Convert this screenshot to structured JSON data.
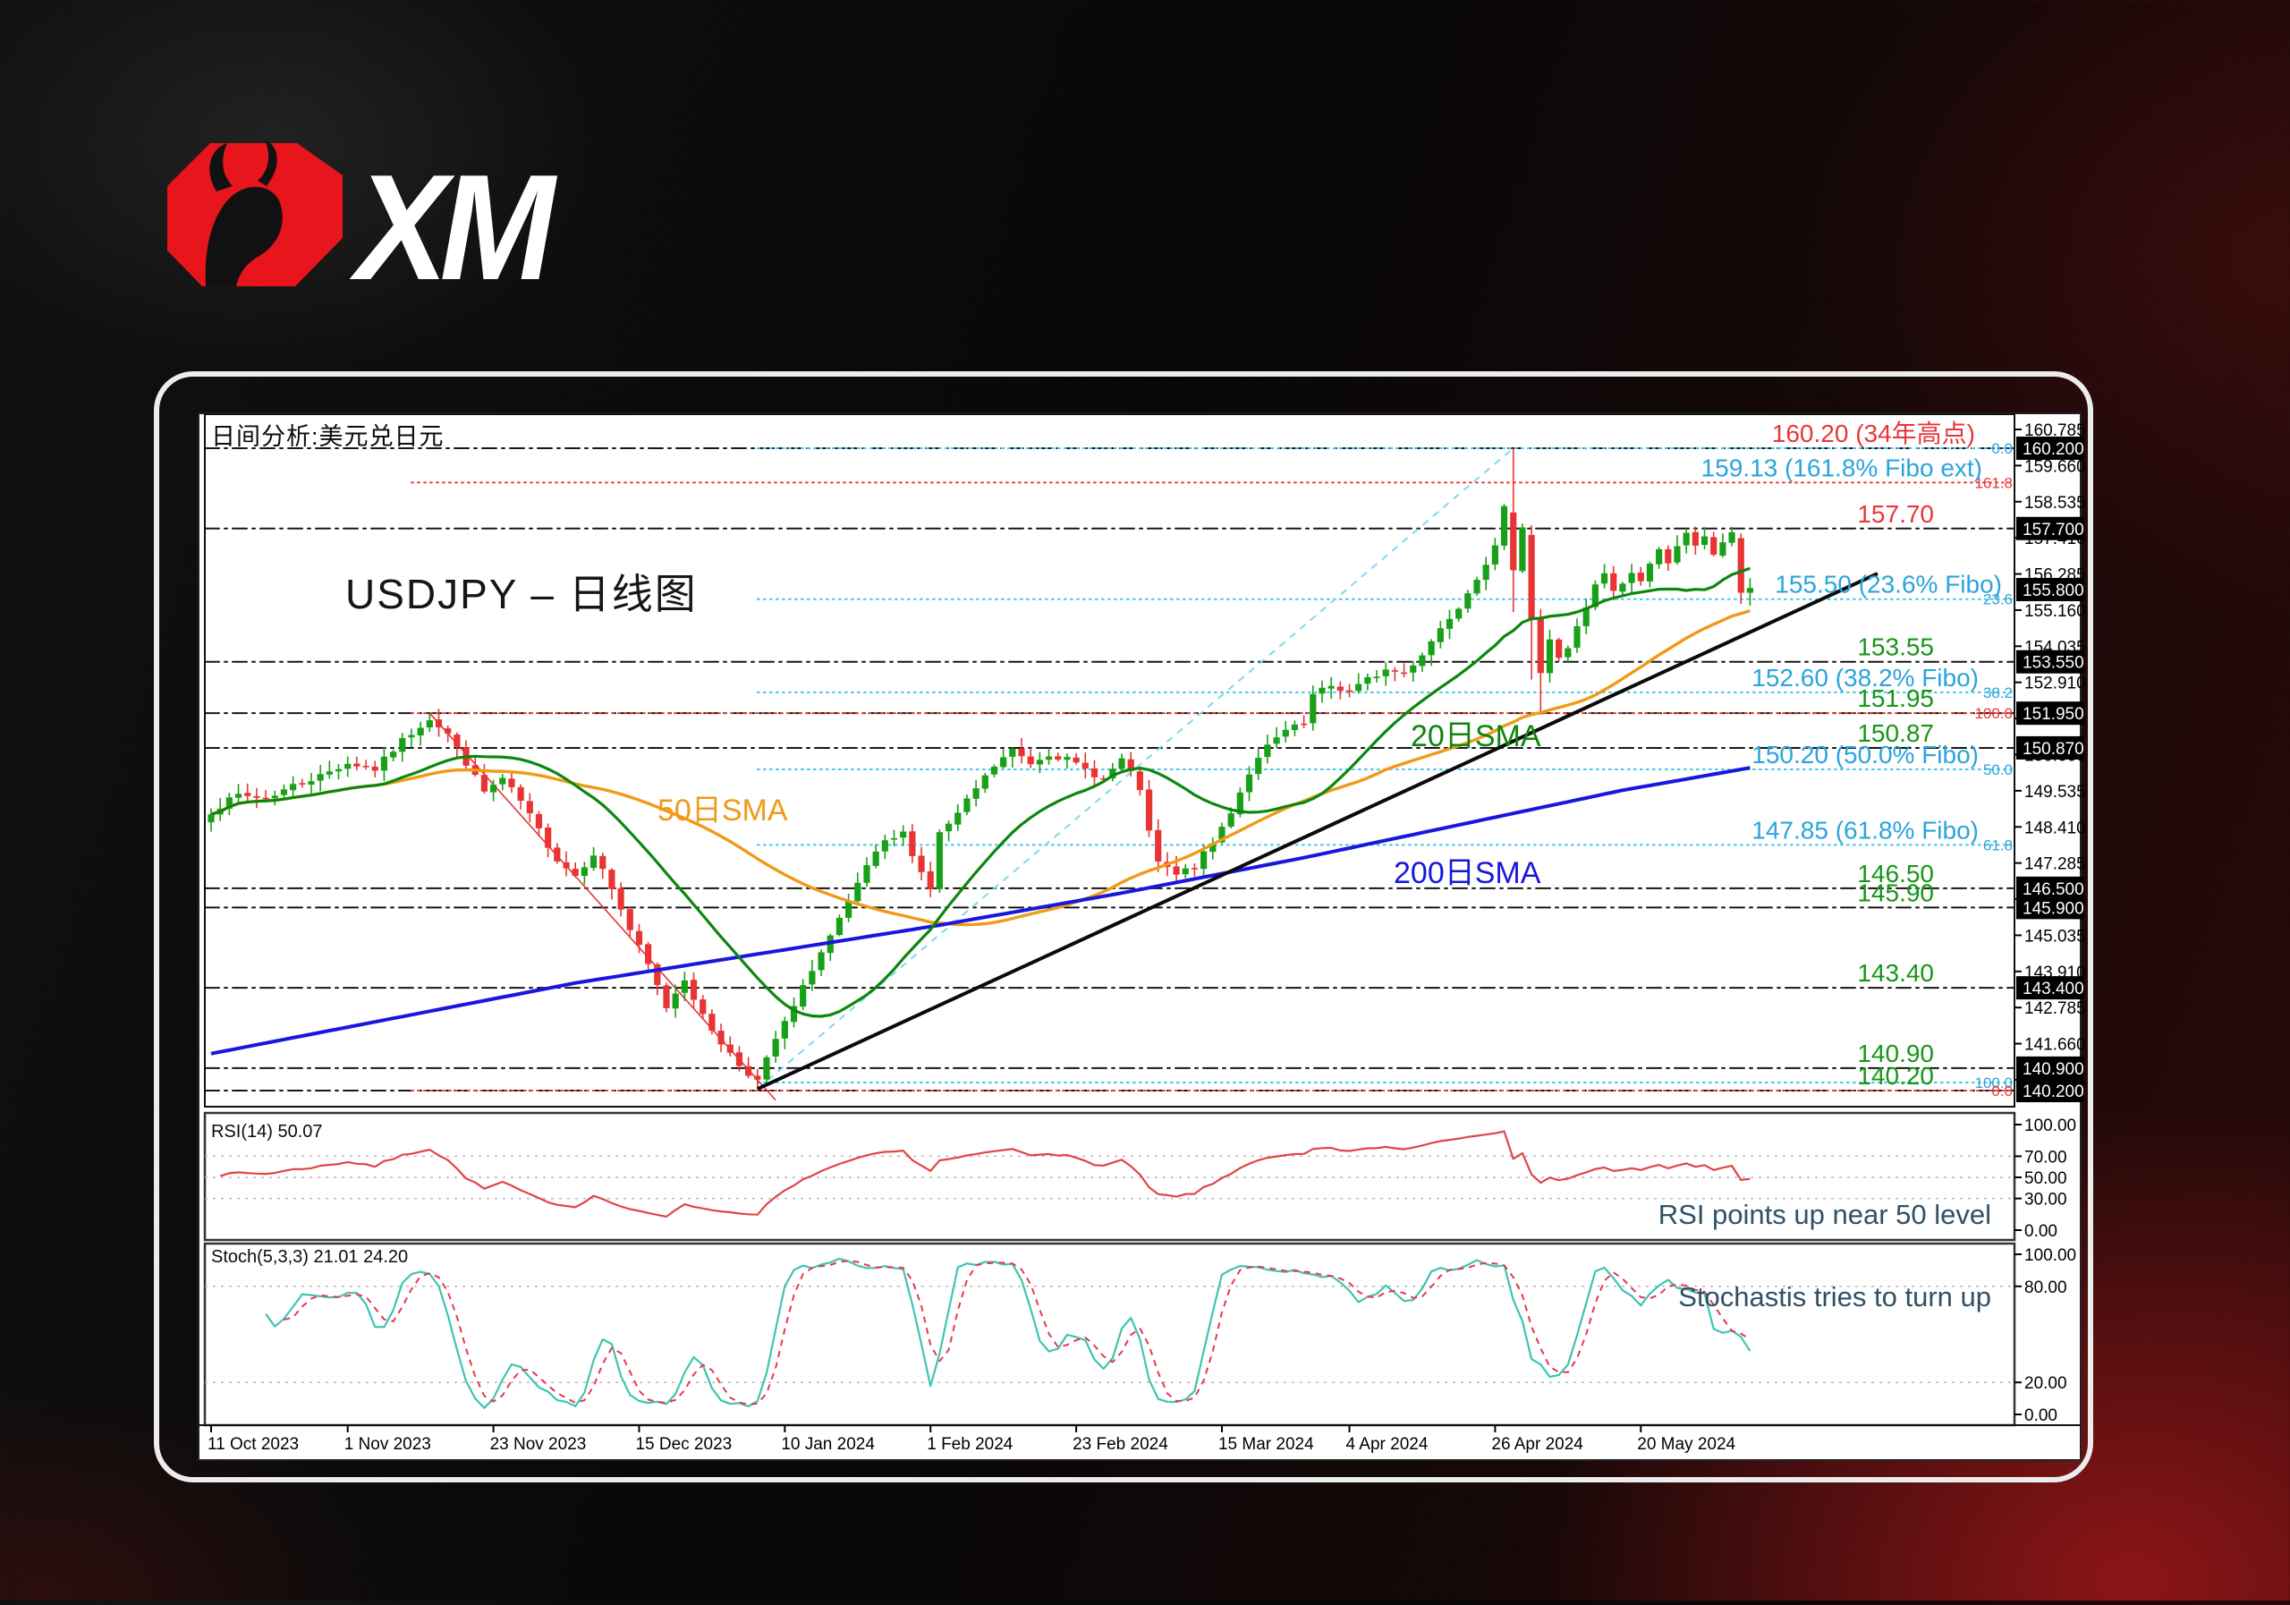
{
  "brand": {
    "logo_text": "XM",
    "badge_color": "#e8151c",
    "bull_color": "#111111"
  },
  "panel": {
    "title": "日间分析:美元兑日元",
    "watermark": "USDJPY – 日线图"
  },
  "indicators": {
    "rsi": {
      "label": "RSI(14) 50.07",
      "period": 14,
      "last_value": 50.07,
      "comment": "RSI points up near 50 level",
      "axis_labels": [
        {
          "v": 100,
          "text": "100.00"
        },
        {
          "v": 70,
          "text": "70.00"
        },
        {
          "v": 50,
          "text": "50.00"
        },
        {
          "v": 30,
          "text": "30.00"
        },
        {
          "v": 0,
          "text": "0.00"
        }
      ],
      "gridlines": [
        70,
        50,
        30
      ],
      "line_color": "#e04545"
    },
    "stoch": {
      "label": "Stoch(5,3,3) 21.01 24.20",
      "k_last": 21.01,
      "d_last": 24.2,
      "comment": "Stochastis tries to turn up",
      "axis_labels": [
        {
          "v": 100,
          "text": "100.00"
        },
        {
          "v": 80,
          "text": "80.00"
        },
        {
          "v": 20,
          "text": "20.00"
        },
        {
          "v": 0,
          "text": "0.00"
        }
      ],
      "gridlines": [
        80,
        20
      ],
      "k_color": "#3fc4b2",
      "d_color": "#e8374b"
    }
  },
  "chart_data": {
    "type": "candlestick",
    "symbol": "USDJPY",
    "timeframe": "daily",
    "title": "日间分析:美元兑日元",
    "current_price": 155.8,
    "bull_color": "#18a018",
    "bear_color": "#e93434",
    "x_axis": {
      "date_ticks": [
        {
          "day": 0,
          "label": "11 Oct 2023"
        },
        {
          "day": 15,
          "label": "1 Nov 2023"
        },
        {
          "day": 31,
          "label": "23 Nov 2023"
        },
        {
          "day": 47,
          "label": "15 Dec 2023"
        },
        {
          "day": 63,
          "label": "10 Jan 2024"
        },
        {
          "day": 79,
          "label": "1 Feb 2024"
        },
        {
          "day": 95,
          "label": "23 Feb 2024"
        },
        {
          "day": 111,
          "label": "15 Mar 2024"
        },
        {
          "day": 125,
          "label": "4 Apr 2024"
        },
        {
          "day": 141,
          "label": "26 Apr 2024"
        },
        {
          "day": 157,
          "label": "20 May 2024"
        }
      ]
    },
    "y_axis": {
      "tick_start": 140.535,
      "tick_step": 1.125,
      "tick_count": 19,
      "tick_labels": [
        "140.535",
        "141.660",
        "142.785",
        "143.910",
        "145.035",
        "146.160",
        "147.285",
        "148.410",
        "149.535",
        "150.660",
        "151.785",
        "152.910",
        "154.035",
        "155.160",
        "156.285",
        "157.410",
        "158.535",
        "159.660",
        "160.785"
      ],
      "marked_prices": [
        160.2,
        157.7,
        155.8,
        153.55,
        151.95,
        150.87,
        146.5,
        145.9,
        143.4,
        140.9,
        140.2
      ]
    },
    "levels": [
      {
        "price": 160.2,
        "label": "160.20 (34年高点)",
        "color": "red",
        "lines": [
          "sr",
          "fib"
        ],
        "label_right": 2208
      },
      {
        "price": 159.13,
        "label": "159.13 (161.8% Fibo ext)",
        "color": "cyan",
        "lines": [
          "ext"
        ],
        "label_right": 2216
      },
      {
        "price": 157.7,
        "label": "157.70",
        "color": "red",
        "lines": [
          "sr"
        ],
        "label_right": 2162
      },
      {
        "price": 155.5,
        "label": "155.50 (23.6% Fibo)",
        "color": "cyan",
        "lines": [
          "fib"
        ],
        "label_right": 2238
      },
      {
        "price": 153.55,
        "label": "153.55",
        "color": "green",
        "lines": [
          "sr"
        ],
        "label_right": 2162
      },
      {
        "price": 152.6,
        "label": "152.60 (38.2% Fibo)",
        "color": "cyan",
        "lines": [
          "fib"
        ],
        "label_right": 2212
      },
      {
        "price": 151.95,
        "label": "151.95",
        "color": "green",
        "lines": [
          "sr",
          "ext"
        ],
        "label_right": 2162
      },
      {
        "price": 150.87,
        "label": "150.87",
        "color": "green",
        "lines": [
          "sr"
        ],
        "label_right": 2162
      },
      {
        "price": 150.2,
        "label": "150.20 (50.0% Fibo)",
        "color": "cyan",
        "lines": [
          "fib"
        ],
        "label_right": 2212
      },
      {
        "price": 147.85,
        "label": "147.85 (61.8% Fibo)",
        "color": "cyan",
        "lines": [
          "fib"
        ],
        "label_right": 2212
      },
      {
        "price": 146.5,
        "label": "146.50",
        "color": "green",
        "lines": [
          "sr"
        ],
        "label_right": 2162
      },
      {
        "price": 145.9,
        "label": "145.90",
        "color": "green",
        "lines": [
          "sr"
        ],
        "label_right": 2162
      },
      {
        "price": 143.4,
        "label": "143.40",
        "color": "green",
        "lines": [
          "sr"
        ],
        "label_right": 2162
      },
      {
        "price": 140.9,
        "label": "140.90",
        "color": "green",
        "lines": [
          "sr"
        ],
        "label_right": 2162
      },
      {
        "price": 140.45,
        "label": "",
        "color": "cyan",
        "lines": [
          "fib"
        ],
        "label_right": 2162
      },
      {
        "price": 140.2,
        "label": "140.20",
        "color": "green",
        "lines": [
          "sr",
          "ext"
        ],
        "label_right": 2162
      }
    ],
    "fib_marks": [
      {
        "price": 160.2,
        "text": "0.0",
        "color": "cyan"
      },
      {
        "price": 159.13,
        "text": "161.8",
        "color": "red"
      },
      {
        "price": 155.5,
        "text": "23.6",
        "color": "cyan"
      },
      {
        "price": 152.6,
        "text": "38.2",
        "color": "cyan"
      },
      {
        "price": 151.95,
        "text": "100.0",
        "color": "red"
      },
      {
        "price": 150.2,
        "text": "50.0",
        "color": "cyan"
      },
      {
        "price": 147.85,
        "text": "61.8",
        "color": "cyan"
      },
      {
        "price": 140.45,
        "text": "100.0",
        "color": "cyan"
      },
      {
        "price": 140.2,
        "text": "0.0",
        "color": "red"
      }
    ],
    "trendlines": [
      {
        "name": "support-trendline",
        "from": [
          60,
          140.25
        ],
        "to": [
          183,
          156.3
        ],
        "color": "#0a0a0a",
        "width": 4,
        "dash": ""
      },
      {
        "name": "channel-projection",
        "from": [
          60,
          140.25
        ],
        "to": [
          143,
          160.2
        ],
        "color": "#7fd9ef",
        "width": 2,
        "dash": "8 7"
      },
      {
        "name": "downtrend-line",
        "from": [
          24,
          151.95
        ],
        "to": [
          62,
          139.9
        ],
        "color": "#e93434",
        "width": 1.6,
        "dash": ""
      }
    ],
    "sma": {
      "s20": {
        "label": "20日SMA",
        "color": "#0c870c",
        "period": 20,
        "label_pos": [
          1577,
          834
        ]
      },
      "s50": {
        "label": "50日SMA",
        "color": "#f09a18",
        "period": 50,
        "label_pos": [
          735,
          917
        ]
      },
      "s200": {
        "label": "200日SMA",
        "color": "#1717dd",
        "label_pos": [
          1558,
          987
        ],
        "anchors": [
          [
            0,
            141.35
          ],
          [
            20,
            142.45
          ],
          [
            40,
            143.55
          ],
          [
            60,
            144.45
          ],
          [
            80,
            145.35
          ],
          [
            100,
            146.35
          ],
          [
            120,
            147.45
          ],
          [
            140,
            148.65
          ],
          [
            155,
            149.55
          ],
          [
            169,
            150.25
          ]
        ]
      }
    },
    "close_anchors": [
      [
        0,
        148.9
      ],
      [
        3,
        149.4
      ],
      [
        6,
        149.3
      ],
      [
        9,
        149.7
      ],
      [
        12,
        150.0
      ],
      [
        15,
        150.4
      ],
      [
        18,
        150.2
      ],
      [
        21,
        151.1
      ],
      [
        24,
        151.8
      ],
      [
        26,
        151.3
      ],
      [
        28,
        150.4
      ],
      [
        30,
        149.5
      ],
      [
        32,
        149.9
      ],
      [
        34,
        149.2
      ],
      [
        36,
        148.3
      ],
      [
        38,
        147.4
      ],
      [
        40,
        146.9
      ],
      [
        42,
        147.6
      ],
      [
        44,
        146.5
      ],
      [
        46,
        145.2
      ],
      [
        48,
        144.1
      ],
      [
        50,
        142.8
      ],
      [
        52,
        143.7
      ],
      [
        54,
        142.5
      ],
      [
        56,
        141.7
      ],
      [
        58,
        141.0
      ],
      [
        60,
        140.5
      ],
      [
        62,
        141.8
      ],
      [
        64,
        142.8
      ],
      [
        66,
        144.0
      ],
      [
        68,
        145.0
      ],
      [
        70,
        146.0
      ],
      [
        72,
        147.2
      ],
      [
        74,
        147.9
      ],
      [
        76,
        148.2
      ],
      [
        78,
        147.0
      ],
      [
        79,
        146.5
      ],
      [
        80,
        148.2
      ],
      [
        82,
        148.8
      ],
      [
        84,
        149.6
      ],
      [
        86,
        150.3
      ],
      [
        88,
        150.8
      ],
      [
        90,
        150.4
      ],
      [
        92,
        150.7
      ],
      [
        94,
        150.5
      ],
      [
        96,
        150.2
      ],
      [
        98,
        149.9
      ],
      [
        100,
        150.5
      ],
      [
        102,
        149.6
      ],
      [
        103,
        148.2
      ],
      [
        104,
        147.3
      ],
      [
        106,
        146.9
      ],
      [
        108,
        147.2
      ],
      [
        110,
        147.9
      ],
      [
        112,
        148.9
      ],
      [
        114,
        150.1
      ],
      [
        116,
        150.9
      ],
      [
        118,
        151.4
      ],
      [
        120,
        151.6
      ],
      [
        121,
        152.5
      ],
      [
        123,
        152.8
      ],
      [
        125,
        152.6
      ],
      [
        127,
        153.0
      ],
      [
        129,
        153.3
      ],
      [
        131,
        153.2
      ],
      [
        133,
        153.8
      ],
      [
        135,
        154.6
      ],
      [
        137,
        155.3
      ],
      [
        139,
        156.2
      ],
      [
        141,
        157.1
      ],
      [
        142,
        158.3
      ],
      [
        143,
        156.4
      ],
      [
        144,
        157.8
      ],
      [
        145,
        154.9
      ],
      [
        146,
        153.2
      ],
      [
        147,
        154.2
      ],
      [
        148,
        153.7
      ],
      [
        149,
        154.0
      ],
      [
        150,
        154.6
      ],
      [
        151,
        155.2
      ],
      [
        152,
        155.9
      ],
      [
        153,
        156.3
      ],
      [
        154,
        155.7
      ],
      [
        155,
        156.0
      ],
      [
        156,
        156.3
      ],
      [
        157,
        156.1
      ],
      [
        158,
        156.6
      ],
      [
        159,
        157.0
      ],
      [
        160,
        156.7
      ],
      [
        161,
        157.2
      ],
      [
        162,
        157.5
      ],
      [
        163,
        157.1
      ],
      [
        164,
        157.4
      ],
      [
        165,
        156.9
      ],
      [
        166,
        157.3
      ],
      [
        167,
        157.5
      ],
      [
        168,
        155.7
      ],
      [
        169,
        155.85
      ]
    ],
    "candle_overrides": {
      "24": {
        "h": 151.95
      },
      "60": {
        "l": 140.25
      },
      "143": {
        "o": 158.2,
        "h": 160.2,
        "l": 155.1,
        "c": 156.4
      },
      "145": {
        "o": 157.5,
        "h": 157.8,
        "l": 153.0,
        "c": 154.9
      },
      "146": {
        "o": 154.9,
        "h": 155.2,
        "l": 151.9,
        "c": 153.2
      },
      "162": {
        "h": 157.7
      },
      "168": {
        "o": 157.4,
        "h": 157.55,
        "l": 155.35,
        "c": 155.7
      },
      "169": {
        "o": 155.7,
        "h": 156.15,
        "l": 155.3,
        "c": 155.85
      }
    },
    "label_colors": {
      "green": "#169616",
      "red": "#e83638",
      "cyan": "#2aa4dc"
    }
  }
}
